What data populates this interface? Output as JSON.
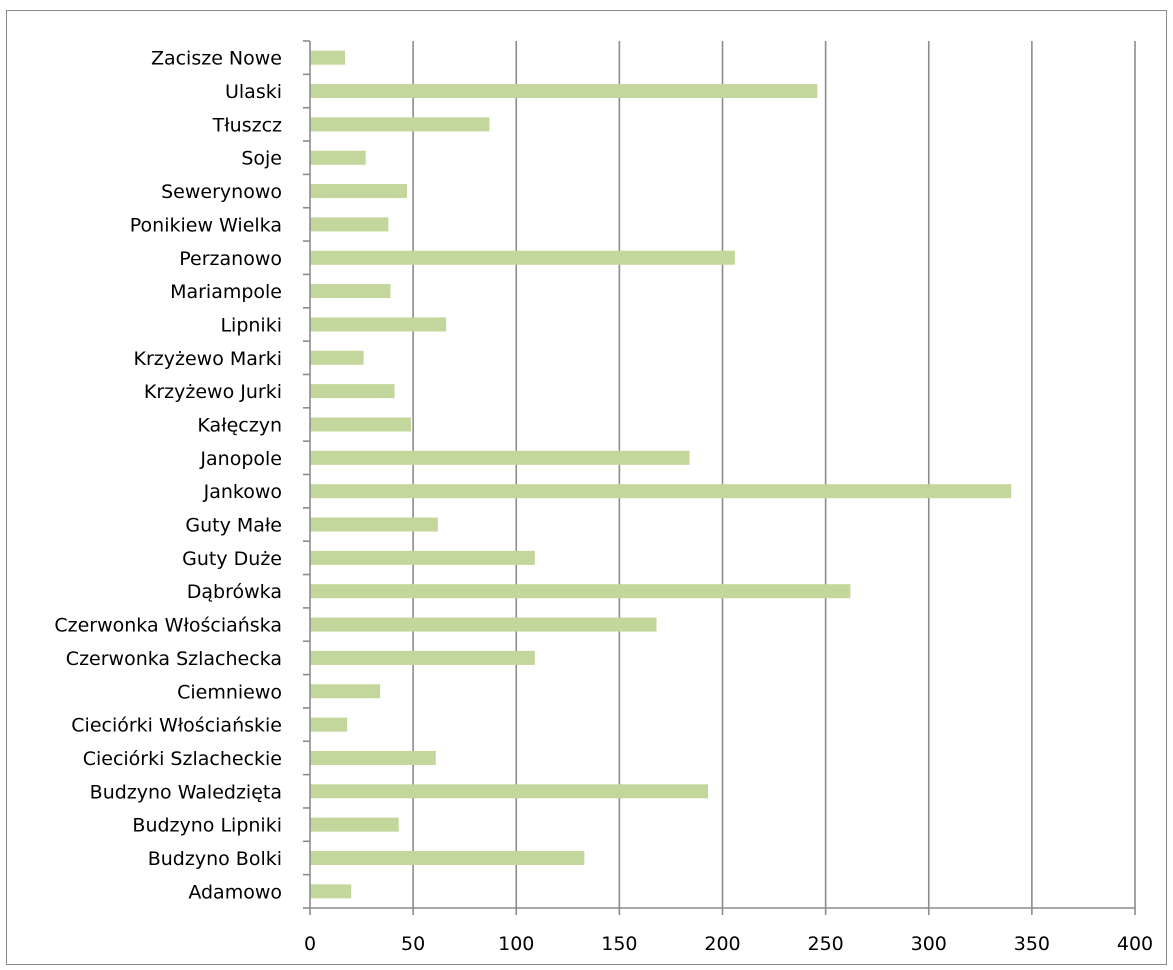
{
  "chart_data": {
    "type": "bar",
    "orientation": "horizontal",
    "title": "",
    "xlabel": "",
    "ylabel": "",
    "categories": [
      "Adamowo",
      "Budzyno Bolki",
      "Budzyno Lipniki",
      "Budzyno Waledzięta",
      "Cieciórki Szlacheckie",
      "Cieciórki Włościańskie",
      "Ciemniewo",
      "Czerwonka Szlachecka",
      "Czerwonka Włościańska",
      "Dąbrówka",
      "Guty Duże",
      "Guty Małe",
      "Jankowo",
      "Janopole",
      "Kałęczyn",
      "Krzyżewo Jurki",
      "Krzyżewo Marki",
      "Lipniki",
      "Mariampole",
      "Perzanowo",
      "Ponikiew Wielka",
      "Sewerynowo",
      "Soje",
      "Tłuszcz",
      "Ulaski",
      "Zacisze Nowe"
    ],
    "values": [
      20,
      133,
      43,
      193,
      61,
      18,
      34,
      109,
      168,
      262,
      109,
      62,
      340,
      184,
      49,
      41,
      26,
      66,
      39,
      206,
      38,
      47,
      27,
      87,
      246,
      17
    ],
    "xlim": [
      0,
      400
    ],
    "xticks": [
      0,
      50,
      100,
      150,
      200,
      250,
      300,
      350,
      400
    ],
    "grid": "vertical",
    "legend": "none",
    "colors": {
      "bar": "#c3d69b",
      "gridline": "#8c8c8c",
      "axis": "#8c8c8c",
      "frame": "#8a8a8a"
    }
  }
}
